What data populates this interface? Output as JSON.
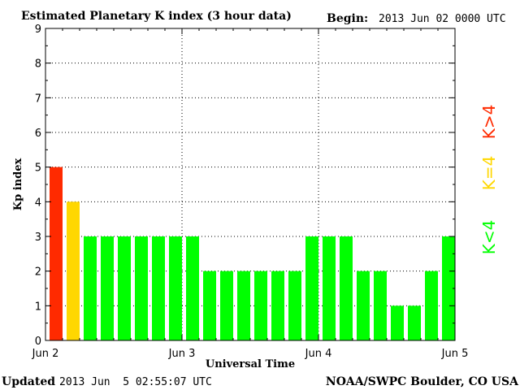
{
  "header": {
    "title": "Estimated Planetary K index (3 hour data)",
    "begin_label": "Begin:",
    "begin_value": "2013 Jun 02 0000 UTC"
  },
  "footer": {
    "updated_label": "Updated",
    "updated_value": "2013 Jun  5 02:55:07 UTC",
    "source": "NOAA/SWPC Boulder, CO USA"
  },
  "legend": {
    "high": {
      "label": "K>4",
      "color": "#ff2a00"
    },
    "mid": {
      "label": "K=4",
      "color": "#ffd700"
    },
    "low": {
      "label": "K<4",
      "color": "#00ff00"
    }
  },
  "chart_data": {
    "type": "bar",
    "title": "Estimated Planetary K index (3 hour data)",
    "xlabel": "Universal Time",
    "ylabel": "Kp index",
    "ylim": [
      0,
      9
    ],
    "yticks": [
      0,
      1,
      2,
      3,
      4,
      5,
      6,
      7,
      8,
      9
    ],
    "x_tick_labels": [
      "Jun 2",
      "Jun 3",
      "Jun 4",
      "Jun 5"
    ],
    "interval_hours": 3,
    "grid": true,
    "values": [
      5,
      4,
      3,
      3,
      3,
      3,
      3,
      3,
      3,
      2,
      2,
      2,
      2,
      2,
      2,
      3,
      3,
      3,
      2,
      2,
      1,
      1,
      2,
      3
    ],
    "colors": {
      "above_4": "#ff2a00",
      "equal_4": "#ffd700",
      "below_4": "#00ff00"
    }
  }
}
